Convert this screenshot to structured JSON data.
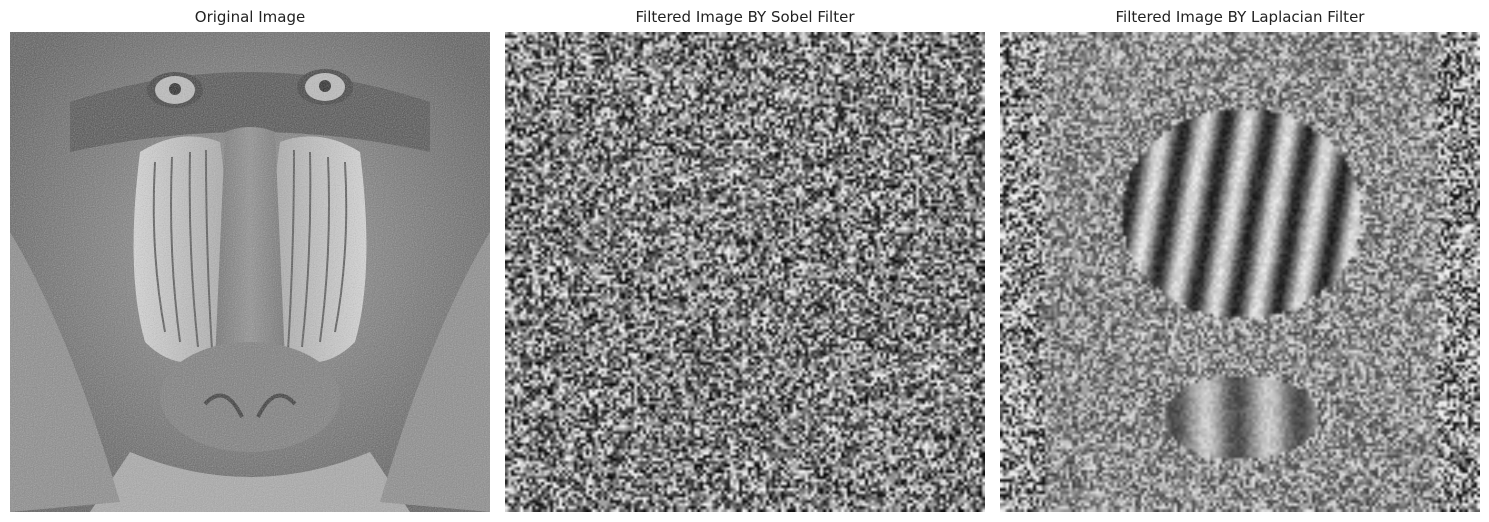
{
  "panels": [
    {
      "title": "Original Image",
      "image": "mandrill-face-grayscale"
    },
    {
      "title": "Filtered Image BY Sobel Filter",
      "image": "sobel-noise-grayscale"
    },
    {
      "title": "Filtered Image BY Laplacian Filter",
      "image": "laplacian-edge-grayscale"
    }
  ]
}
